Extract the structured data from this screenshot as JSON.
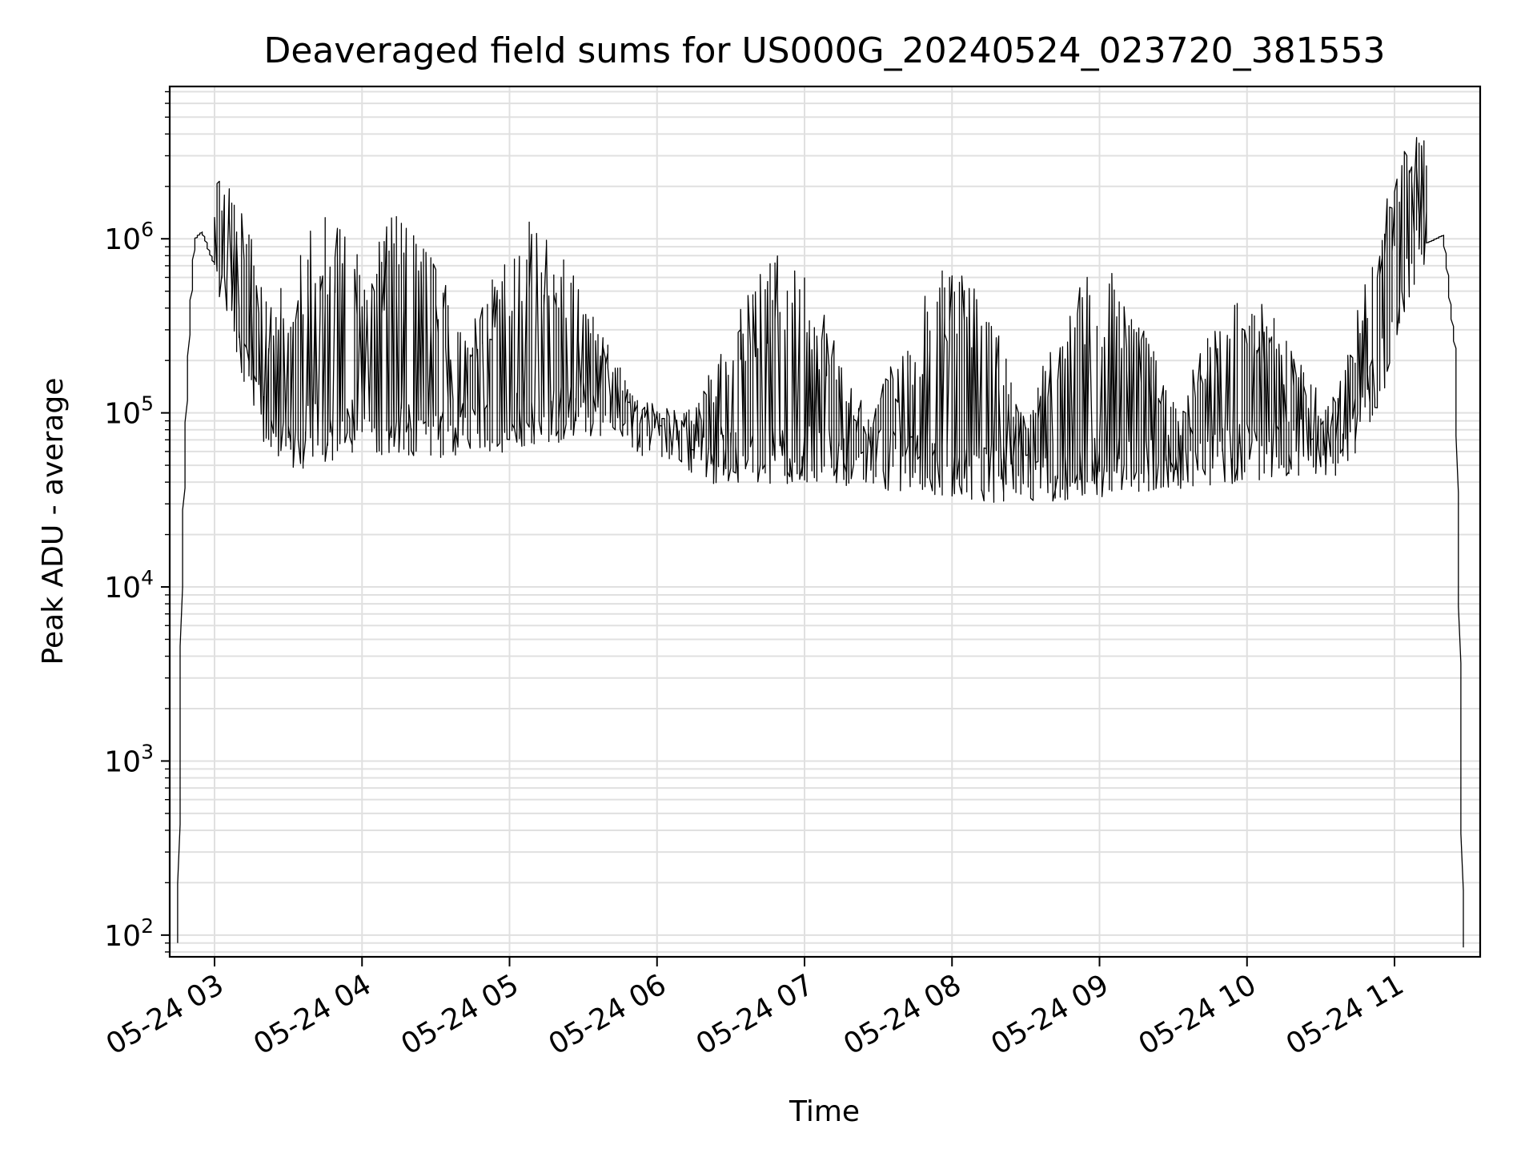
{
  "chart_data": {
    "type": "line",
    "title": "Deaveraged field sums for US000G_20240524_023720_381553",
    "xlabel": "Time",
    "ylabel": "Peak ADU - average",
    "yscale": "log",
    "ylim": [
      75,
      7500000
    ],
    "xlim": [
      "05-24 02:42",
      "05-24 11:35"
    ],
    "grid": true,
    "line_color": "#000000",
    "grid_color": "#e0e0e0",
    "x_ticks": [
      "05-24 03",
      "05-24 04",
      "05-24 05",
      "05-24 06",
      "05-24 07",
      "05-24 08",
      "05-24 09",
      "05-24 10",
      "05-24 11"
    ],
    "y_ticks": [
      {
        "value": 100,
        "base": "10",
        "exp": "2"
      },
      {
        "value": 1000,
        "base": "10",
        "exp": "3"
      },
      {
        "value": 10000,
        "base": "10",
        "exp": "4"
      },
      {
        "value": 100000,
        "base": "10",
        "exp": "5"
      },
      {
        "value": 1000000,
        "base": "10",
        "exp": "6"
      }
    ],
    "series": [
      {
        "x": [
          "05-24 02:45",
          "05-24 02:47",
          "05-24 02:50",
          "05-24 02:52",
          "05-24 02:55",
          "05-24 03:00",
          "05-24 03:05",
          "05-24 03:10",
          "05-24 03:20",
          "05-24 03:30",
          "05-24 03:40",
          "05-24 04:00",
          "05-24 04:30",
          "05-24 05:00",
          "05-24 05:20",
          "05-24 05:40",
          "05-24 06:00",
          "05-24 06:20",
          "05-24 06:40",
          "05-24 07:00",
          "05-24 07:30",
          "05-24 08:00",
          "05-24 08:30",
          "05-24 09:00",
          "05-24 09:30",
          "05-24 10:00",
          "05-24 10:20",
          "05-24 10:40",
          "05-24 11:00",
          "05-24 11:10",
          "05-24 11:20",
          "05-24 11:25",
          "05-24 11:28"
        ],
        "y": [
          90,
          20000,
          400000,
          1000000,
          1100000,
          700000,
          450000,
          250000,
          90000,
          60000,
          70000,
          80000,
          75000,
          80000,
          90000,
          100000,
          70000,
          55000,
          50000,
          55000,
          50000,
          45000,
          40000,
          45000,
          50000,
          55000,
          60000,
          60000,
          250000,
          900000,
          1050000,
          200000,
          85
        ],
        "peaks": [
          {
            "x": "05-24 02:50",
            "y": 2600000
          },
          {
            "x": "05-24 02:58",
            "y": 2300000
          },
          {
            "x": "05-24 03:45",
            "y": 1500000
          },
          {
            "x": "05-24 04:15",
            "y": 1500000
          },
          {
            "x": "05-24 05:10",
            "y": 1400000
          },
          {
            "x": "05-24 06:50",
            "y": 900000
          },
          {
            "x": "05-24 08:00",
            "y": 750000
          },
          {
            "x": "05-24 09:00",
            "y": 750000
          },
          {
            "x": "05-24 10:00",
            "y": 500000
          },
          {
            "x": "05-24 11:14",
            "y": 4500000
          }
        ]
      }
    ]
  }
}
